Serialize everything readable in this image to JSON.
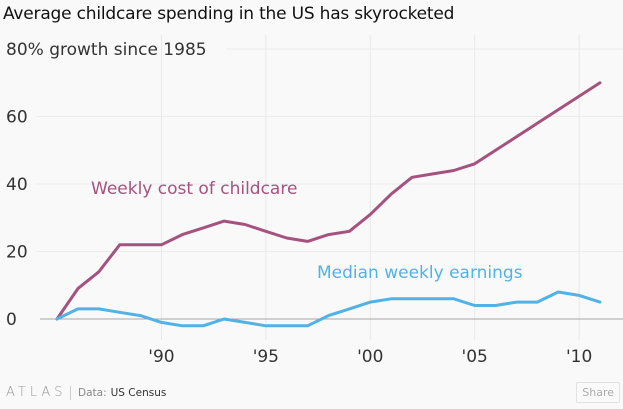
{
  "header": {
    "title": "Average childcare spending in the US has skyrocketed"
  },
  "chart_data": {
    "type": "line",
    "title": "Average childcare spending in the US has skyrocketed",
    "ylabel": "% growth since 1985",
    "xlabel": "",
    "ylim": [
      -5,
      80
    ],
    "xlim": [
      1985,
      2011
    ],
    "y_ticks": [
      0,
      20,
      40,
      60,
      80
    ],
    "y_tick_labels": [
      "0",
      "20",
      "40",
      "60",
      "80"
    ],
    "y_top_label_suffix": "% growth since 1985",
    "x_ticks": [
      1990,
      1995,
      2000,
      2005,
      2010
    ],
    "x_tick_labels": [
      "'90",
      "'95",
      "'00",
      "'05",
      "'10"
    ],
    "grid": true,
    "x": [
      1985,
      1986,
      1987,
      1988,
      1989,
      1990,
      1991,
      1992,
      1993,
      1994,
      1995,
      1996,
      1997,
      1998,
      1999,
      2000,
      2001,
      2002,
      2003,
      2004,
      2005,
      2006,
      2007,
      2008,
      2009,
      2010,
      2011
    ],
    "series": [
      {
        "name": "Weekly cost of childcare",
        "color": "#a5527f",
        "values": [
          0,
          9,
          14,
          22,
          22,
          22,
          25,
          27,
          29,
          28,
          26,
          24,
          23,
          25,
          26,
          31,
          37,
          42,
          43,
          44,
          46,
          50,
          54,
          58,
          62,
          66,
          70
        ]
      },
      {
        "name": "Median weekly earnings",
        "color": "#51b2e5",
        "values": [
          0,
          3,
          3,
          2,
          1,
          -1,
          -2,
          -2,
          0,
          -1,
          -2,
          -2,
          -2,
          1,
          3,
          5,
          6,
          6,
          6,
          6,
          4,
          4,
          5,
          5,
          8,
          7,
          5
        ]
      }
    ],
    "annotations": [
      {
        "text": "Weekly cost of childcare",
        "series": 0
      },
      {
        "text": "Median weekly earnings",
        "series": 1
      }
    ]
  },
  "footer": {
    "brand": "ATLAS",
    "source_label": "Data:",
    "source_value": "US Census",
    "share_label": "Share"
  }
}
